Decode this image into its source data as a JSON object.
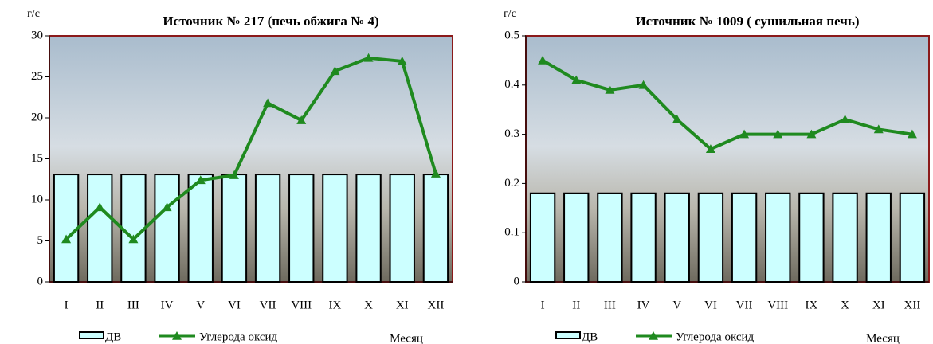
{
  "chart_data": [
    {
      "type": "bar_line",
      "title": "Источник № 217 (печь обжига № 4)",
      "y_label": "г/с",
      "x_label": "Месяц",
      "categories": [
        "I",
        "II",
        "III",
        "IV",
        "V",
        "VI",
        "VII",
        "VIII",
        "IX",
        "X",
        "XI",
        "XII"
      ],
      "series": [
        {
          "name": "ДВ",
          "type": "bar",
          "color": "#ccffff",
          "values": [
            13.1,
            13.1,
            13.1,
            13.1,
            13.1,
            13.1,
            13.1,
            13.1,
            13.1,
            13.1,
            13.1,
            13.1
          ]
        },
        {
          "name": "Углерода оксид",
          "type": "line",
          "color": "#1f8a1f",
          "values": [
            5.2,
            9.1,
            5.2,
            9.1,
            12.4,
            13.0,
            21.8,
            19.7,
            25.7,
            27.3,
            26.9,
            13.2
          ]
        }
      ],
      "ylim": [
        0,
        30
      ],
      "yticks": [
        0,
        5,
        10,
        15,
        20,
        25,
        30
      ]
    },
    {
      "type": "bar_line",
      "title": "Источник № 1009 ( сушильная печь)",
      "y_label": "г/с",
      "x_label": "Месяц",
      "categories": [
        "I",
        "II",
        "III",
        "IV",
        "V",
        "VI",
        "VII",
        "VIII",
        "IX",
        "X",
        "XI",
        "XII"
      ],
      "series": [
        {
          "name": "ДВ",
          "type": "bar",
          "color": "#ccffff",
          "values": [
            0.18,
            0.18,
            0.18,
            0.18,
            0.18,
            0.18,
            0.18,
            0.18,
            0.18,
            0.18,
            0.18,
            0.18
          ]
        },
        {
          "name": "Углерода оксид",
          "type": "line",
          "color": "#1f8a1f",
          "values": [
            0.45,
            0.41,
            0.39,
            0.4,
            0.33,
            0.27,
            0.3,
            0.3,
            0.3,
            0.33,
            0.31,
            0.3
          ]
        }
      ],
      "ylim": [
        0,
        0.5
      ],
      "yticks": [
        0,
        0.1,
        0.2,
        0.3,
        0.4,
        0.5
      ]
    }
  ]
}
